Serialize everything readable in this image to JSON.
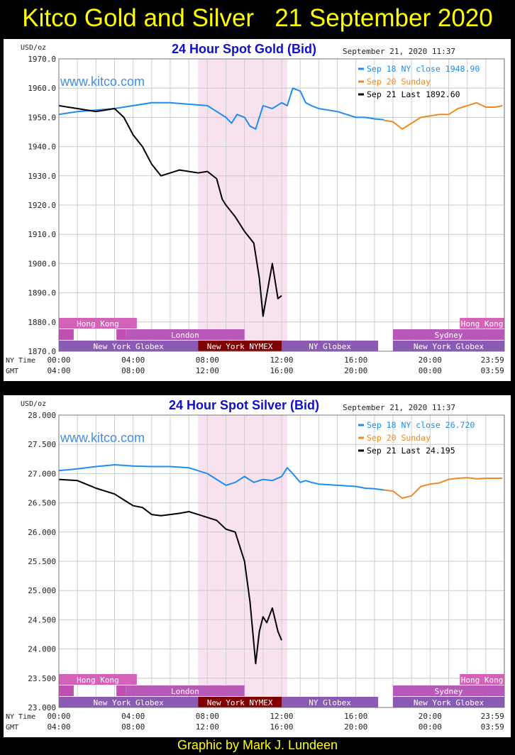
{
  "header": {
    "title": "Kitco Gold and Silver   21 September 2020"
  },
  "footer": {
    "credit": "Graphic by Mark J. Lundeen"
  },
  "colors": {
    "title": "#ffff00",
    "sep18": "#1e8cf0",
    "sep20": "#f08a1e",
    "sep21": "#000000",
    "nymex_band": "#f8e2f0"
  },
  "chart_data": [
    {
      "type": "line",
      "title": "24 Hour Spot Gold (Bid)",
      "timestamp": "September 21, 2020 11:37",
      "watermark": "www.kitco.com",
      "ylabel": "USD/oz",
      "ylim": [
        1870,
        1970
      ],
      "yticks": [
        "1970.0",
        "1960.0",
        "1950.0",
        "1940.0",
        "1930.0",
        "1920.0",
        "1910.0",
        "1900.0",
        "1890.0",
        "1880.0",
        "1870.0"
      ],
      "xlim_hours": [
        0,
        24
      ],
      "xaxis_rows": [
        {
          "label": "NY Time",
          "ticks": [
            "00:00",
            "04:00",
            "08:00",
            "12:00",
            "16:00",
            "20:00",
            "23:59"
          ]
        },
        {
          "label": "GMT",
          "ticks": [
            "04:00",
            "08:00",
            "12:00",
            "16:00",
            "20:00",
            "00:00",
            "03:59"
          ]
        }
      ],
      "grid": true,
      "legend_position": "top-right",
      "series": [
        {
          "name": "Sep 18 NY close 1948.90",
          "color": "#1e8cf0",
          "x": [
            0,
            1,
            2,
            3,
            4,
            5,
            6,
            7,
            8,
            8.5,
            9,
            9.3,
            9.6,
            10,
            10.3,
            10.6,
            11,
            11.5,
            12,
            12.3,
            12.6,
            13,
            13.3,
            13.6,
            14,
            15,
            16,
            16.5,
            17,
            17.5
          ],
          "values": [
            1951,
            1952,
            1952.5,
            1953,
            1954,
            1955,
            1955,
            1954.5,
            1954,
            1952,
            1950,
            1948,
            1951,
            1950,
            1947,
            1946,
            1954,
            1953,
            1955,
            1954,
            1960,
            1959,
            1955,
            1954,
            1953,
            1952,
            1950,
            1950,
            1949.5,
            1949.2
          ]
        },
        {
          "name": "Sep 20 Sunday",
          "color": "#f08a1e",
          "x": [
            17.5,
            18,
            18.5,
            19,
            19.5,
            20,
            20.5,
            21,
            21.5,
            22,
            22.5,
            23,
            23.5,
            23.9
          ],
          "values": [
            1949,
            1948.5,
            1946,
            1948,
            1950,
            1950.5,
            1951,
            1951,
            1953,
            1954,
            1955,
            1953.5,
            1953.5,
            1954
          ]
        },
        {
          "name": "Sep 21 Last 1892.60",
          "color": "#000000",
          "x": [
            0,
            0.5,
            1,
            1.5,
            2,
            2.5,
            3,
            3.5,
            4,
            4.5,
            5,
            5.5,
            6,
            6.5,
            7,
            7.5,
            8,
            8.5,
            8.8,
            9,
            9.5,
            10,
            10.5,
            10.8,
            11,
            11.3,
            11.5,
            11.8,
            12
          ],
          "values": [
            1954,
            1953.5,
            1953,
            1952.5,
            1952,
            1952.5,
            1953,
            1950,
            1944,
            1940,
            1934,
            1930,
            1931,
            1932,
            1931.5,
            1931,
            1931.5,
            1929,
            1922,
            1920,
            1916,
            1911,
            1907,
            1895,
            1882,
            1893,
            1900,
            1888,
            1889
          ]
        }
      ],
      "sessions": [
        {
          "row": 0,
          "label": "Hong Kong",
          "start": 0,
          "end": 4.2,
          "color": "#d462b8"
        },
        {
          "row": 0,
          "label": "Hong Kong",
          "start": 21.6,
          "end": 24,
          "color": "#d462b8"
        },
        {
          "row": 1,
          "label": "",
          "start": 0,
          "end": 0.8,
          "color": "#c050b0"
        },
        {
          "row": 1,
          "label": "",
          "start": 3.1,
          "end": 3.6,
          "color": "#c050b0"
        },
        {
          "row": 1,
          "label": "London",
          "start": 3.6,
          "end": 10,
          "color": "#b858b8"
        },
        {
          "row": 1,
          "label": "Sydney",
          "start": 18,
          "end": 24,
          "color": "#b858b8"
        },
        {
          "row": 2,
          "label": "New York Globex",
          "start": 0,
          "end": 7.5,
          "color": "#8a5ab4"
        },
        {
          "row": 2,
          "label": "New York NYMEX",
          "start": 7.5,
          "end": 12,
          "color": "#800000"
        },
        {
          "row": 2,
          "label": "NY Globex",
          "start": 12,
          "end": 17.2,
          "color": "#8a5ab4"
        },
        {
          "row": 2,
          "label": "New York Globex",
          "start": 18,
          "end": 24,
          "color": "#8a5ab4"
        }
      ],
      "nymex_band": [
        7.5,
        12.3
      ]
    },
    {
      "type": "line",
      "title": "24 Hour Spot Silver (Bid)",
      "timestamp": "September 21, 2020 11:37",
      "watermark": "www.kitco.com",
      "ylabel": "USD/oz",
      "ylim": [
        23,
        28
      ],
      "yticks": [
        "28.000",
        "27.500",
        "27.000",
        "26.500",
        "26.000",
        "25.500",
        "25.000",
        "24.500",
        "24.000",
        "23.500",
        "23.000"
      ],
      "xlim_hours": [
        0,
        24
      ],
      "xaxis_rows": [
        {
          "label": "NY Time",
          "ticks": [
            "00:00",
            "04:00",
            "08:00",
            "12:00",
            "16:00",
            "20:00",
            "23:59"
          ]
        },
        {
          "label": "GMT",
          "ticks": [
            "04:00",
            "08:00",
            "12:00",
            "16:00",
            "20:00",
            "00:00",
            "03:59"
          ]
        }
      ],
      "grid": true,
      "legend_position": "top-right",
      "series": [
        {
          "name": "Sep 18 NY close 26.720",
          "color": "#1e8cf0",
          "x": [
            0,
            1,
            2,
            3,
            4,
            5,
            6,
            7,
            8,
            8.5,
            9,
            9.5,
            10,
            10.5,
            11,
            11.5,
            12,
            12.3,
            12.6,
            13,
            13.3,
            13.6,
            14,
            15,
            16,
            16.5,
            17,
            17.5
          ],
          "values": [
            27.05,
            27.08,
            27.12,
            27.15,
            27.13,
            27.12,
            27.12,
            27.1,
            27.0,
            26.9,
            26.8,
            26.85,
            26.95,
            26.85,
            26.9,
            26.88,
            26.95,
            27.1,
            27.0,
            26.85,
            26.88,
            26.85,
            26.82,
            26.8,
            26.78,
            26.75,
            26.74,
            26.72
          ]
        },
        {
          "name": "Sep 20 Sunday",
          "color": "#f08a1e",
          "x": [
            17.5,
            18,
            18.5,
            19,
            19.5,
            20,
            20.5,
            21,
            21.5,
            22,
            22.5,
            23,
            23.5,
            23.9
          ],
          "values": [
            26.72,
            26.7,
            26.58,
            26.62,
            26.78,
            26.82,
            26.84,
            26.9,
            26.92,
            26.93,
            26.91,
            26.92,
            26.92,
            26.92
          ]
        },
        {
          "name": "Sep 21 Last 24.195",
          "color": "#000000",
          "x": [
            0,
            1,
            2,
            3,
            3.5,
            4,
            4.5,
            5,
            5.5,
            6,
            6.5,
            7,
            7.5,
            8,
            8.5,
            9,
            9.5,
            10,
            10.3,
            10.6,
            10.8,
            11,
            11.2,
            11.5,
            11.8,
            12
          ],
          "values": [
            26.9,
            26.88,
            26.75,
            26.65,
            26.55,
            26.45,
            26.42,
            26.3,
            26.28,
            26.3,
            26.32,
            26.35,
            26.3,
            26.25,
            26.2,
            26.05,
            26.0,
            25.5,
            24.8,
            23.75,
            24.3,
            24.55,
            24.45,
            24.7,
            24.3,
            24.15
          ]
        }
      ],
      "sessions": [
        {
          "row": 0,
          "label": "Hong Kong",
          "start": 0,
          "end": 4.2,
          "color": "#d462b8"
        },
        {
          "row": 0,
          "label": "Hong Kong",
          "start": 21.6,
          "end": 24,
          "color": "#d462b8"
        },
        {
          "row": 1,
          "label": "",
          "start": 0,
          "end": 0.8,
          "color": "#c050b0"
        },
        {
          "row": 1,
          "label": "",
          "start": 3.1,
          "end": 3.6,
          "color": "#c050b0"
        },
        {
          "row": 1,
          "label": "London",
          "start": 3.6,
          "end": 10,
          "color": "#b858b8"
        },
        {
          "row": 1,
          "label": "Sydney",
          "start": 18,
          "end": 24,
          "color": "#b858b8"
        },
        {
          "row": 2,
          "label": "New York Globex",
          "start": 0,
          "end": 7.5,
          "color": "#8a5ab4"
        },
        {
          "row": 2,
          "label": "New York NYMEX",
          "start": 7.5,
          "end": 12,
          "color": "#800000"
        },
        {
          "row": 2,
          "label": "NY Globex",
          "start": 12,
          "end": 17.2,
          "color": "#8a5ab4"
        },
        {
          "row": 2,
          "label": "New York Globex",
          "start": 18,
          "end": 24,
          "color": "#8a5ab4"
        }
      ],
      "nymex_band": [
        7.5,
        12.3
      ]
    }
  ]
}
